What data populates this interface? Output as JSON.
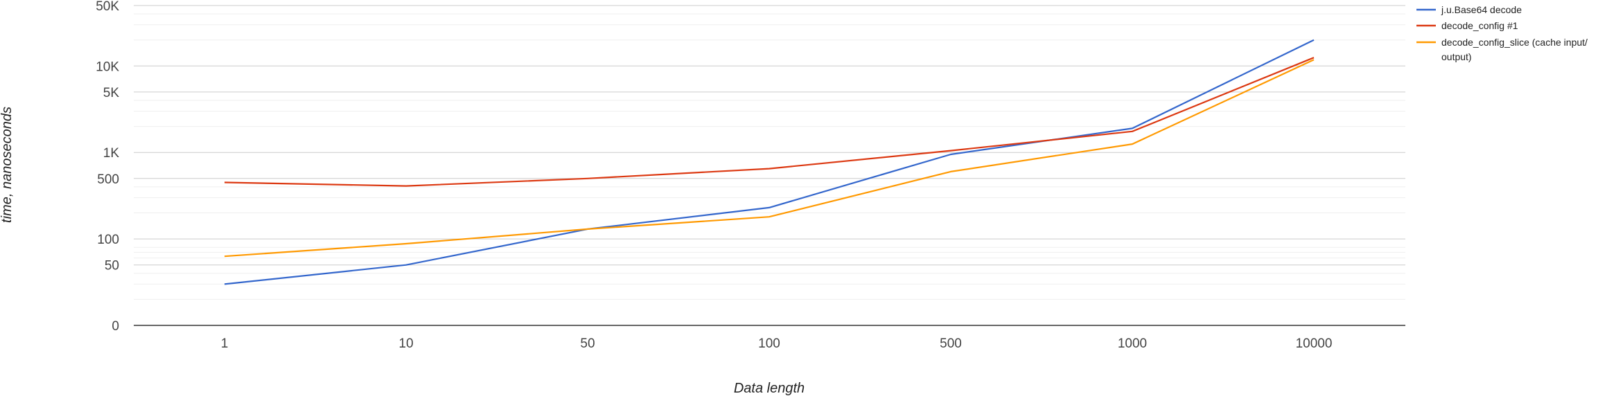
{
  "chart_data": {
    "type": "line",
    "categories": [
      "1",
      "10",
      "50",
      "100",
      "500",
      "1000",
      "10000"
    ],
    "xlabel": "Data length",
    "ylabel": "time, nanoseconds",
    "yscale": "log",
    "ytick_labels": [
      "0",
      "50",
      "100",
      "500",
      "1K",
      "5K",
      "10K",
      "50K"
    ],
    "ylim": [
      10,
      50000
    ],
    "grid": true,
    "legend_position": "top-right",
    "series": [
      {
        "name": "j.u.Base64 decode",
        "color": "#3366cc",
        "values": [
          30,
          50,
          130,
          230,
          950,
          1900,
          20000
        ]
      },
      {
        "name": "decode_config #1",
        "color": "#dc3912",
        "values": [
          450,
          410,
          500,
          650,
          1050,
          1750,
          12500
        ]
      },
      {
        "name": "decode_config_slice (cache input/",
        "name_line2": "output)",
        "color": "#ff9900",
        "values": [
          63,
          88,
          130,
          180,
          600,
          1250,
          11800
        ]
      }
    ]
  }
}
